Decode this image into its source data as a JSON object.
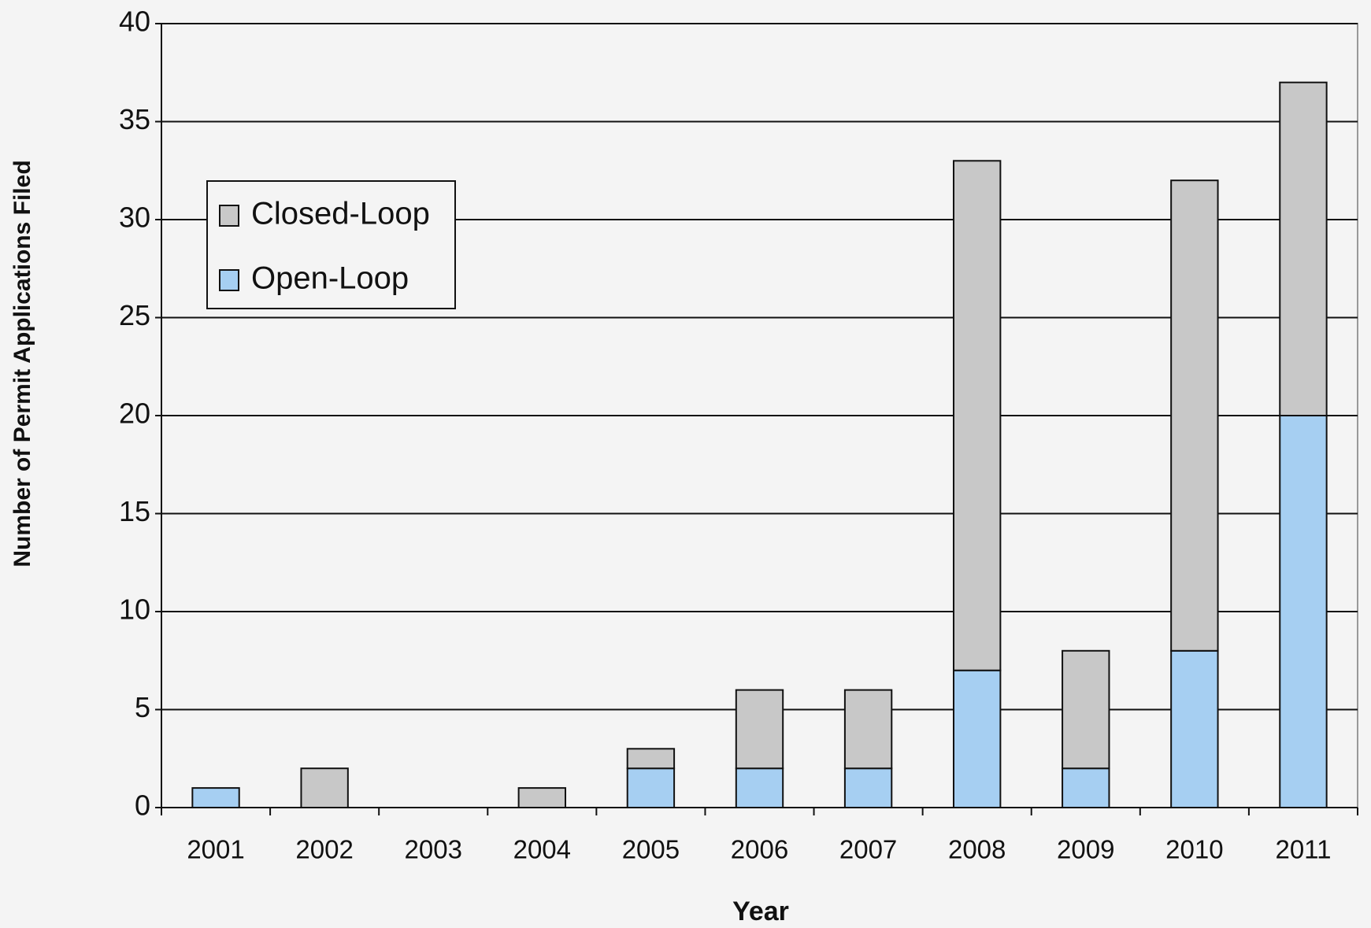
{
  "chart_data": {
    "type": "stacked_bar",
    "x_label": "Year",
    "y_label": "Number of Permit Applications Filed",
    "categories": [
      "2001",
      "2002",
      "2003",
      "2004",
      "2005",
      "2006",
      "2007",
      "2008",
      "2009",
      "2010",
      "2011"
    ],
    "series": [
      {
        "name": "Open-Loop",
        "color": "#a6cff2",
        "values": [
          1,
          0,
          0,
          0,
          2,
          2,
          2,
          7,
          2,
          8,
          20
        ]
      },
      {
        "name": "Closed-Loop",
        "color": "#c8c8c8",
        "values": [
          0,
          2,
          0,
          1,
          1,
          4,
          4,
          26,
          6,
          24,
          17
        ]
      }
    ],
    "ylim": [
      0,
      40
    ],
    "yticks": [
      0,
      5,
      10,
      15,
      20,
      25,
      30,
      35,
      40
    ],
    "grid": true,
    "legend": "upper left"
  }
}
